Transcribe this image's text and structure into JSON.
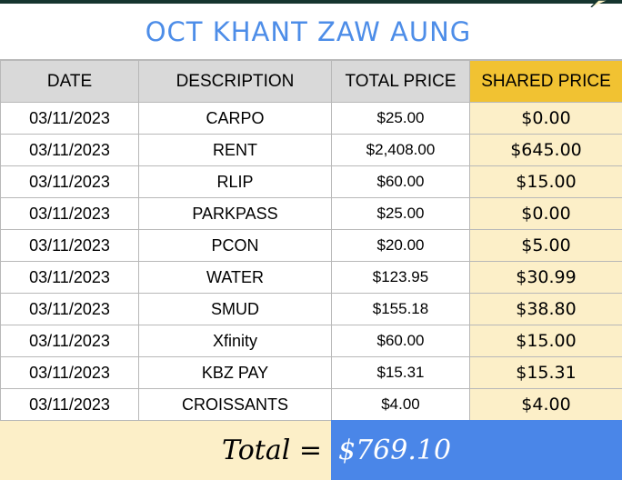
{
  "title": "OCT KHANT ZAW AUNG",
  "headers": {
    "date": "DATE",
    "description": "DESCRIPTION",
    "total_price": "TOTAL PRICE",
    "shared_price": "SHARED PRICE"
  },
  "rows": [
    {
      "date": "03/11/2023",
      "description": "CARPO",
      "total_price": "$25.00",
      "shared_price": "$0.00"
    },
    {
      "date": "03/11/2023",
      "description": "RENT",
      "total_price": "$2,408.00",
      "shared_price": "$645.00"
    },
    {
      "date": "03/11/2023",
      "description": "RLIP",
      "total_price": "$60.00",
      "shared_price": "$15.00"
    },
    {
      "date": "03/11/2023",
      "description": "PARKPASS",
      "total_price": "$25.00",
      "shared_price": "$0.00"
    },
    {
      "date": "03/11/2023",
      "description": "PCON",
      "total_price": "$20.00",
      "shared_price": "$5.00"
    },
    {
      "date": "03/11/2023",
      "description": "WATER",
      "total_price": "$123.95",
      "shared_price": "$30.99"
    },
    {
      "date": "03/11/2023",
      "description": "SMUD",
      "total_price": "$155.18",
      "shared_price": "$38.80"
    },
    {
      "date": "03/11/2023",
      "description": "Xfinity",
      "total_price": "$60.00",
      "shared_price": "$15.00"
    },
    {
      "date": "03/11/2023",
      "description": "KBZ PAY",
      "total_price": "$15.31",
      "shared_price": "$15.31"
    },
    {
      "date": "03/11/2023",
      "description": "CROISSANTS",
      "total_price": "$4.00",
      "shared_price": "$4.00"
    }
  ],
  "total": {
    "label": "Total =",
    "value": "$769.10"
  },
  "colors": {
    "title": "#4d8de8",
    "header_bg": "#d9d9d9",
    "shared_header_bg": "#f1c232",
    "shared_cell_bg": "#fcefc8",
    "total_value_bg": "#4a86e8",
    "top_bar": "#16352f"
  }
}
